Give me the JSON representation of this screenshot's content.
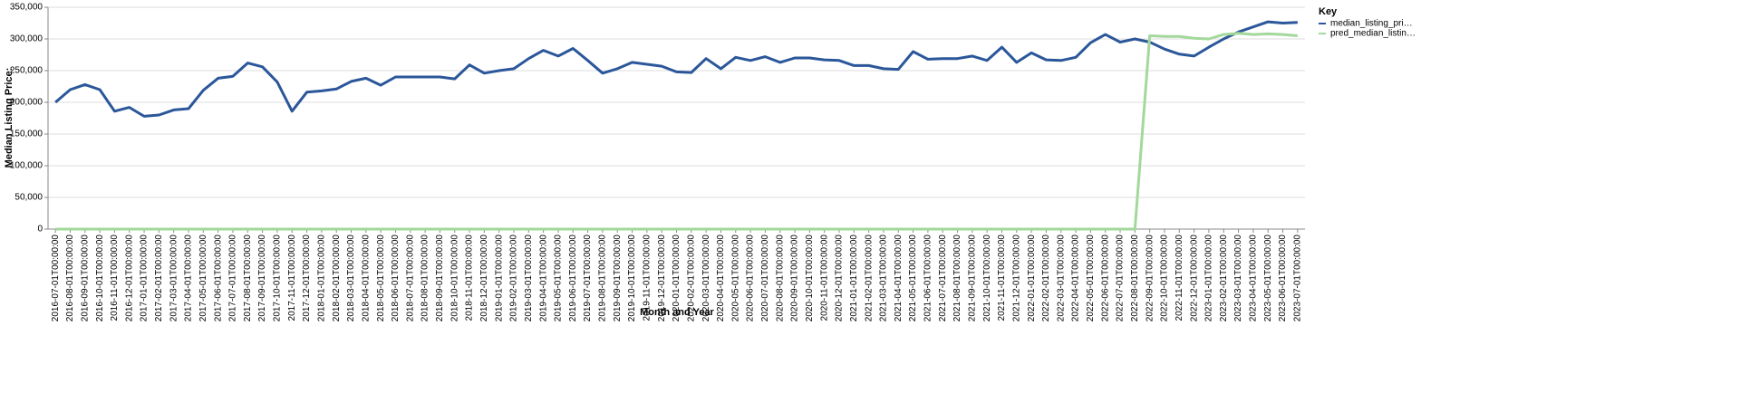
{
  "chart_data": {
    "type": "line",
    "x_label": "Month and Year",
    "y_label": "Median Listing Price:",
    "legend_title": "Key",
    "legend": "right",
    "grid": true,
    "categories": [
      "2016-07-01T00:00:00",
      "2016-08-01T00:00:00",
      "2016-09-01T00:00:00",
      "2016-10-01T00:00:00",
      "2016-11-01T00:00:00",
      "2016-12-01T00:00:00",
      "2017-01-01T00:00:00",
      "2017-02-01T00:00:00",
      "2017-03-01T00:00:00",
      "2017-04-01T00:00:00",
      "2017-05-01T00:00:00",
      "2017-06-01T00:00:00",
      "2017-07-01T00:00:00",
      "2017-08-01T00:00:00",
      "2017-09-01T00:00:00",
      "2017-10-01T00:00:00",
      "2017-11-01T00:00:00",
      "2017-12-01T00:00:00",
      "2018-01-01T00:00:00",
      "2018-02-01T00:00:00",
      "2018-03-01T00:00:00",
      "2018-04-01T00:00:00",
      "2018-05-01T00:00:00",
      "2018-06-01T00:00:00",
      "2018-07-01T00:00:00",
      "2018-08-01T00:00:00",
      "2018-09-01T00:00:00",
      "2018-10-01T00:00:00",
      "2018-11-01T00:00:00",
      "2018-12-01T00:00:00",
      "2019-01-01T00:00:00",
      "2019-02-01T00:00:00",
      "2019-03-01T00:00:00",
      "2019-04-01T00:00:00",
      "2019-05-01T00:00:00",
      "2019-06-01T00:00:00",
      "2019-07-01T00:00:00",
      "2019-08-01T00:00:00",
      "2019-09-01T00:00:00",
      "2019-10-01T00:00:00",
      "2019-11-01T00:00:00",
      "2019-12-01T00:00:00",
      "2020-01-01T00:00:00",
      "2020-02-01T00:00:00",
      "2020-03-01T00:00:00",
      "2020-04-01T00:00:00",
      "2020-05-01T00:00:00",
      "2020-06-01T00:00:00",
      "2020-07-01T00:00:00",
      "2020-08-01T00:00:00",
      "2020-09-01T00:00:00",
      "2020-10-01T00:00:00",
      "2020-11-01T00:00:00",
      "2020-12-01T00:00:00",
      "2021-01-01T00:00:00",
      "2021-02-01T00:00:00",
      "2021-03-01T00:00:00",
      "2021-04-01T00:00:00",
      "2021-05-01T00:00:00",
      "2021-06-01T00:00:00",
      "2021-07-01T00:00:00",
      "2021-08-01T00:00:00",
      "2021-09-01T00:00:00",
      "2021-10-01T00:00:00",
      "2021-11-01T00:00:00",
      "2021-12-01T00:00:00",
      "2022-01-01T00:00:00",
      "2022-02-01T00:00:00",
      "2022-03-01T00:00:00",
      "2022-04-01T00:00:00",
      "2022-05-01T00:00:00",
      "2022-06-01T00:00:00",
      "2022-07-01T00:00:00",
      "2022-08-01T00:00:00",
      "2022-09-01T00:00:00",
      "2022-10-01T00:00:00",
      "2022-11-01T00:00:00",
      "2022-12-01T00:00:00",
      "2023-01-01T00:00:00",
      "2023-02-01T00:00:00",
      "2023-03-01T00:00:00",
      "2023-04-01T00:00:00",
      "2023-05-01T00:00:00",
      "2023-06-01T00:00:00",
      "2023-07-01T00:00:00"
    ],
    "series": [
      {
        "name": "median_listing_pri…",
        "color": "#2b579a",
        "values": [
          200000,
          220000,
          228000,
          220000,
          186000,
          192000,
          178000,
          180000,
          188000,
          190000,
          219000,
          238000,
          241000,
          262000,
          256000,
          232000,
          186000,
          216000,
          218000,
          221000,
          233000,
          238000,
          227000,
          240000,
          240000,
          240000,
          240000,
          237000,
          259000,
          246000,
          250000,
          253000,
          269000,
          282000,
          273000,
          285000,
          266000,
          246000,
          253000,
          263000,
          260000,
          257000,
          248000,
          247000,
          269000,
          253000,
          271000,
          266000,
          272000,
          263000,
          270000,
          270000,
          267000,
          266000,
          258000,
          258000,
          253000,
          252000,
          280000,
          268000,
          269000,
          269000,
          273000,
          266000,
          287000,
          263000,
          278000,
          267000,
          266000,
          271000,
          294000,
          307000,
          295000,
          300000,
          295000,
          284000,
          276000,
          273000,
          287000,
          300000,
          311000,
          319000,
          327000,
          325000,
          326000
        ]
      },
      {
        "name": "pred_median_listin…",
        "color": "#a3d89b",
        "values": [
          0,
          0,
          0,
          0,
          0,
          0,
          0,
          0,
          0,
          0,
          0,
          0,
          0,
          0,
          0,
          0,
          0,
          0,
          0,
          0,
          0,
          0,
          0,
          0,
          0,
          0,
          0,
          0,
          0,
          0,
          0,
          0,
          0,
          0,
          0,
          0,
          0,
          0,
          0,
          0,
          0,
          0,
          0,
          0,
          0,
          0,
          0,
          0,
          0,
          0,
          0,
          0,
          0,
          0,
          0,
          0,
          0,
          0,
          0,
          0,
          0,
          0,
          0,
          0,
          0,
          0,
          0,
          0,
          0,
          0,
          0,
          0,
          0,
          0,
          305000,
          304000,
          304000,
          301000,
          300000,
          307000,
          309000,
          307000,
          308000,
          307000,
          305000
        ]
      }
    ],
    "ylim": [
      0,
      350000
    ],
    "yticks": [
      0,
      {
        "value": 50000,
        "label": "50,000"
      },
      {
        "value": 100000,
        "label": "100,000"
      },
      {
        "value": 150000,
        "label": "150,000"
      },
      {
        "value": 200000,
        "label": "200,000"
      },
      {
        "value": 250000,
        "label": "250,000"
      },
      {
        "value": 300000,
        "label": "300,000"
      },
      {
        "value": 350000,
        "label": "350,000"
      }
    ]
  }
}
